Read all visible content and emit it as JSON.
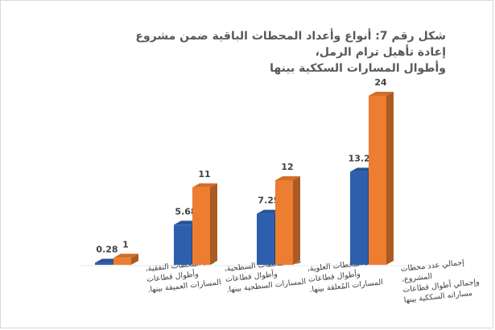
{
  "chart_data": {
    "type": "bar",
    "title": [
      "شكل رقم 7: أنواع وأعداد المحطات الباقية ضمن مشروع إعادة تأهيل ترام الرمل،",
      "وأطوال المسارات السككية بينها"
    ],
    "categories": [
      [
        "عدد المحطات النفقية،",
        "وأطوال قطاعات",
        "المسارات العميقة بينها."
      ],
      [
        "عدد المحطات السطحية،",
        "وأطوال قطاعات",
        "المسارات السطحية بينها."
      ],
      [
        "عدد المحطات العلوية،",
        "وأطوال قطاعات",
        "المسارات المُعلقة بينها."
      ],
      [
        "إجمالي عدد محطات",
        "المشروع،",
        "وإجمالي أطوال قطاعات",
        "مساراته السككية بينها"
      ]
    ],
    "series": [
      {
        "values": [
          0.28,
          5.68,
          7.25,
          13.21
        ],
        "value_labels": [
          "0.28",
          "5.68",
          "7.25",
          "13.21"
        ],
        "color": "#2e5fac"
      },
      {
        "values": [
          1,
          11,
          12,
          24
        ],
        "value_labels": [
          "1",
          "11",
          "12",
          "24"
        ],
        "color": "#ed7d31"
      }
    ],
    "ylim": [
      0,
      24
    ],
    "grid": false,
    "legend": "none",
    "style": "3d-column"
  }
}
